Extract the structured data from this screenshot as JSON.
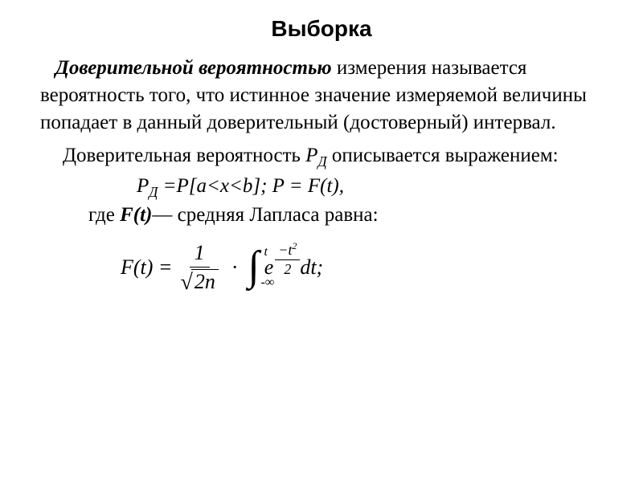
{
  "title": "Выборка",
  "paragraph1_lead": "Доверительной вероятностью",
  "paragraph1_rest": " измерения называется вероятность того, что истинное значение измеряемой величины попадает в данный доверительный (достоверный) интервал.",
  "paragraph2_pre": "Доверительная вероятность ",
  "paragraph2_var": "Р",
  "paragraph2_sub": "Д",
  "paragraph2_post": " описывается выражением:",
  "formula1_lhs": "Р",
  "formula1_sub": "Д",
  "formula1_eq": " =Р[a<x<b];   P = F(t),",
  "formula_desc_pre": "где ",
  "formula_desc_ft": "F(t)",
  "formula_desc_post": "— средняя Лапласа равна:",
  "integral": {
    "lhs": "F(t) = ",
    "frac1_num": "1",
    "frac1_den_sqrt_arg": "2n",
    "dot": "·",
    "int_upper": "t",
    "int_lower": "-∞",
    "e_base": "e",
    "exp_num": "−t",
    "exp_sup": "2",
    "exp_den": "2",
    "tail": " dt;"
  },
  "colors": {
    "text": "#000000",
    "background": "#ffffff"
  },
  "fonts": {
    "title_family": "Arial",
    "body_family": "Times New Roman",
    "title_size_pt": 21,
    "body_size_pt": 19
  }
}
